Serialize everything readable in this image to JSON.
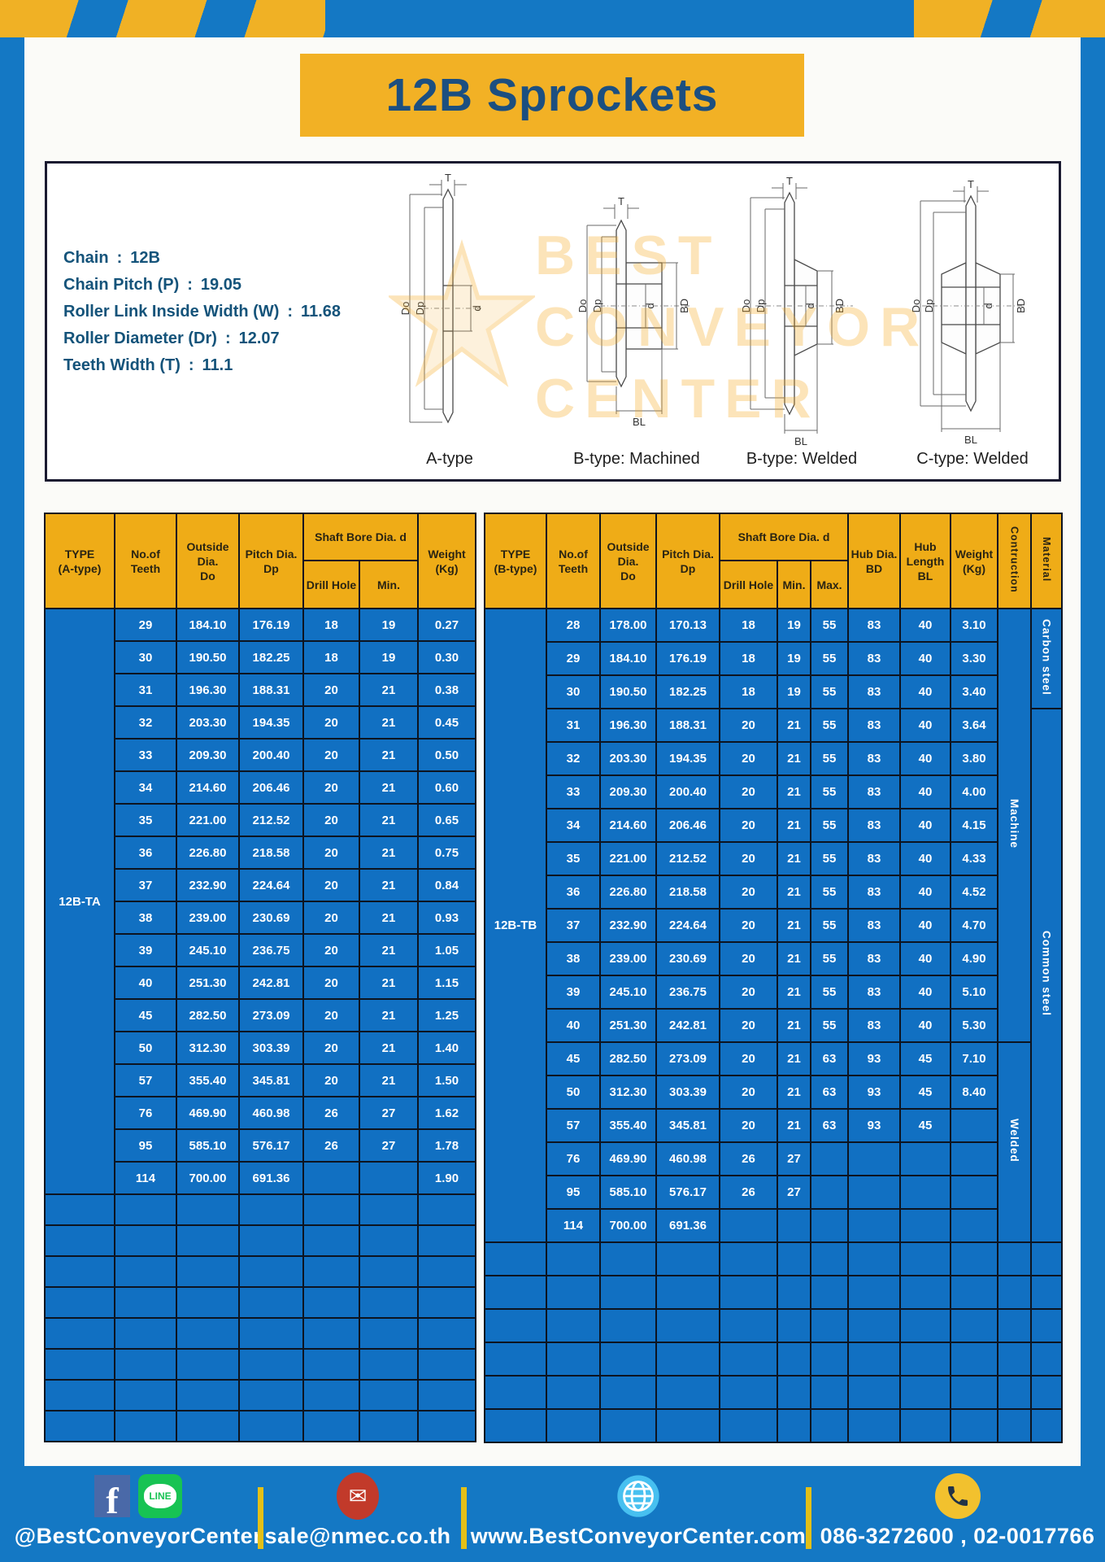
{
  "page": {
    "title": "12B Sprockets"
  },
  "specs": {
    "items": [
      {
        "label": "Chain",
        "value": "12B"
      },
      {
        "label": "Chain Pitch (P)",
        "value": "19.05"
      },
      {
        "label": "Roller Link Inside Width (W)",
        "value": "11.68"
      },
      {
        "label": "Roller Diameter (Dr)",
        "value": "12.07"
      },
      {
        "label": "Teeth Width (T)",
        "value": "11.1"
      }
    ]
  },
  "drawings": {
    "captions": [
      "A-type",
      "B-type: Machined",
      "B-type: Welded",
      "C-type: Welded"
    ],
    "dim": {
      "t": "T",
      "outside": "Do",
      "pitch": "Dp",
      "bore": "d",
      "hub_dia": "BD",
      "hub_len": "BL"
    },
    "watermark": [
      "BEST",
      "CONVEYOR",
      "CENTER"
    ]
  },
  "headers": {
    "type": "TYPE",
    "teeth1": "No.of",
    "teeth2": "Teeth",
    "do1": "Outside",
    "do2": "Dia.",
    "do3": "Do",
    "dp1": "Pitch Dia.",
    "dp2": "Dp",
    "bore": "Shaft Bore Dia. d",
    "drill": "Drill Hole",
    "min": "Min.",
    "max": "Max.",
    "bd1": "Hub Dia.",
    "bd2": "BD",
    "bl1": "Hub",
    "bl2": "Length",
    "bl3": "BL",
    "weight1": "Weight",
    "weight2": "(Kg)",
    "construction": "Contruction",
    "material": "Material"
  },
  "table_a": {
    "type_sub": "(A-type)",
    "type_value": "12B-TA",
    "rows": [
      [
        "29",
        "184.10",
        "176.19",
        "18",
        "19",
        "0.27"
      ],
      [
        "30",
        "190.50",
        "182.25",
        "18",
        "19",
        "0.30"
      ],
      [
        "31",
        "196.30",
        "188.31",
        "20",
        "21",
        "0.38"
      ],
      [
        "32",
        "203.30",
        "194.35",
        "20",
        "21",
        "0.45"
      ],
      [
        "33",
        "209.30",
        "200.40",
        "20",
        "21",
        "0.50"
      ],
      [
        "34",
        "214.60",
        "206.46",
        "20",
        "21",
        "0.60"
      ],
      [
        "35",
        "221.00",
        "212.52",
        "20",
        "21",
        "0.65"
      ],
      [
        "36",
        "226.80",
        "218.58",
        "20",
        "21",
        "0.75"
      ],
      [
        "37",
        "232.90",
        "224.64",
        "20",
        "21",
        "0.84"
      ],
      [
        "38",
        "239.00",
        "230.69",
        "20",
        "21",
        "0.93"
      ],
      [
        "39",
        "245.10",
        "236.75",
        "20",
        "21",
        "1.05"
      ],
      [
        "40",
        "251.30",
        "242.81",
        "20",
        "21",
        "1.15"
      ],
      [
        "45",
        "282.50",
        "273.09",
        "20",
        "21",
        "1.25"
      ],
      [
        "50",
        "312.30",
        "303.39",
        "20",
        "21",
        "1.40"
      ],
      [
        "57",
        "355.40",
        "345.81",
        "20",
        "21",
        "1.50"
      ],
      [
        "76",
        "469.90",
        "460.98",
        "26",
        "27",
        "1.62"
      ],
      [
        "95",
        "585.10",
        "576.17",
        "26",
        "27",
        "1.78"
      ],
      [
        "114",
        "700.00",
        "691.36",
        "",
        "",
        "1.90"
      ]
    ],
    "empty_rows": 8
  },
  "table_b": {
    "type_sub": "(B-type)",
    "type_value": "12B-TB",
    "rows": [
      [
        "28",
        "178.00",
        "170.13",
        "18",
        "19",
        "55",
        "83",
        "40",
        "3.10"
      ],
      [
        "29",
        "184.10",
        "176.19",
        "18",
        "19",
        "55",
        "83",
        "40",
        "3.30"
      ],
      [
        "30",
        "190.50",
        "182.25",
        "18",
        "19",
        "55",
        "83",
        "40",
        "3.40"
      ],
      [
        "31",
        "196.30",
        "188.31",
        "20",
        "21",
        "55",
        "83",
        "40",
        "3.64"
      ],
      [
        "32",
        "203.30",
        "194.35",
        "20",
        "21",
        "55",
        "83",
        "40",
        "3.80"
      ],
      [
        "33",
        "209.30",
        "200.40",
        "20",
        "21",
        "55",
        "83",
        "40",
        "4.00"
      ],
      [
        "34",
        "214.60",
        "206.46",
        "20",
        "21",
        "55",
        "83",
        "40",
        "4.15"
      ],
      [
        "35",
        "221.00",
        "212.52",
        "20",
        "21",
        "55",
        "83",
        "40",
        "4.33"
      ],
      [
        "36",
        "226.80",
        "218.58",
        "20",
        "21",
        "55",
        "83",
        "40",
        "4.52"
      ],
      [
        "37",
        "232.90",
        "224.64",
        "20",
        "21",
        "55",
        "83",
        "40",
        "4.70"
      ],
      [
        "38",
        "239.00",
        "230.69",
        "20",
        "21",
        "55",
        "83",
        "40",
        "4.90"
      ],
      [
        "39",
        "245.10",
        "236.75",
        "20",
        "21",
        "55",
        "83",
        "40",
        "5.10"
      ],
      [
        "40",
        "251.30",
        "242.81",
        "20",
        "21",
        "55",
        "83",
        "40",
        "5.30"
      ],
      [
        "45",
        "282.50",
        "273.09",
        "20",
        "21",
        "63",
        "93",
        "45",
        "7.10"
      ],
      [
        "50",
        "312.30",
        "303.39",
        "20",
        "21",
        "63",
        "93",
        "45",
        "8.40"
      ],
      [
        "57",
        "355.40",
        "345.81",
        "20",
        "21",
        "63",
        "93",
        "45",
        ""
      ],
      [
        "76",
        "469.90",
        "460.98",
        "26",
        "27",
        "",
        "",
        "",
        ""
      ],
      [
        "95",
        "585.10",
        "576.17",
        "26",
        "27",
        "",
        "",
        "",
        ""
      ],
      [
        "114",
        "700.00",
        "691.36",
        "",
        "",
        "",
        "",
        "",
        ""
      ]
    ],
    "construction_spans": [
      {
        "label": "Machine",
        "from": 0,
        "rows": 13
      },
      {
        "label": "Welded",
        "from": 13,
        "rows": 6
      }
    ],
    "material_spans": [
      {
        "label": "Carbon steel",
        "from": 0,
        "rows": 3
      },
      {
        "label": "Common steel",
        "from": 3,
        "rows": 16
      }
    ],
    "empty_rows": 6
  },
  "footer": {
    "facebook_letter": "f",
    "line_label": "LINE",
    "mail_glyph": "✉",
    "social_handle": "@BestConveyorCenter",
    "email": "sale@nmec.co.th",
    "website": "www.BestConveyorCenter.com",
    "phones": "086-3272600 , 02-0017766"
  },
  "colors": {
    "blue": "#1478c4",
    "cell_blue": "#1170c2",
    "yellow": "#f0b125",
    "navy_text": "#1c4f80",
    "grid": "#0d1420"
  }
}
